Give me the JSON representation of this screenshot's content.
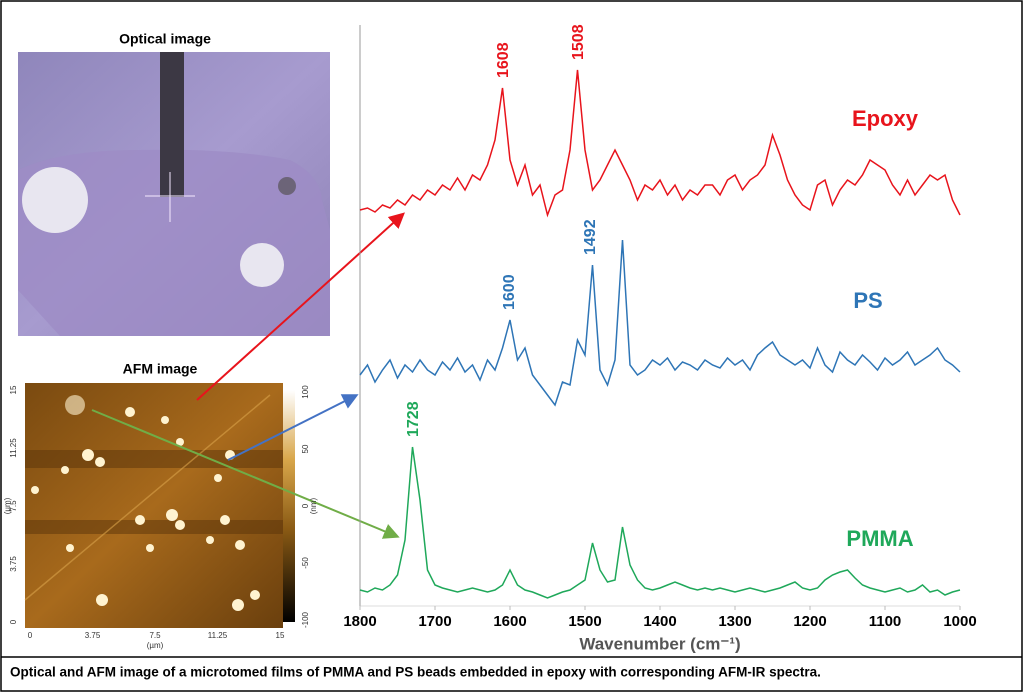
{
  "chart_data": {
    "type": "line",
    "xlabel": "Wavenumber (cm⁻¹)",
    "xlim": [
      1800,
      1000
    ],
    "xticks": [
      1800,
      1700,
      1600,
      1500,
      1400,
      1300,
      1200,
      1100,
      1000
    ],
    "ylim": [
      0,
      590
    ],
    "x": [
      1800,
      1790,
      1780,
      1770,
      1760,
      1750,
      1740,
      1730,
      1720,
      1710,
      1700,
      1690,
      1680,
      1670,
      1660,
      1650,
      1640,
      1630,
      1620,
      1610,
      1600,
      1590,
      1580,
      1570,
      1560,
      1550,
      1540,
      1530,
      1520,
      1510,
      1500,
      1490,
      1480,
      1470,
      1460,
      1450,
      1440,
      1430,
      1420,
      1410,
      1400,
      1390,
      1380,
      1370,
      1360,
      1350,
      1340,
      1330,
      1320,
      1310,
      1300,
      1290,
      1280,
      1270,
      1260,
      1250,
      1240,
      1230,
      1220,
      1210,
      1200,
      1190,
      1180,
      1170,
      1160,
      1150,
      1140,
      1130,
      1120,
      1110,
      1100,
      1090,
      1080,
      1070,
      1060,
      1050,
      1040,
      1030,
      1020,
      1010,
      1000
    ],
    "series": [
      {
        "name": "Epoxy",
        "color": "#e8141c",
        "peaks": [
          1608,
          1508
        ],
        "values": [
          400,
          402,
          398,
          405,
          402,
          410,
          405,
          415,
          410,
          420,
          415,
          425,
          420,
          432,
          420,
          435,
          430,
          445,
          470,
          522,
          450,
          425,
          445,
          415,
          425,
          395,
          415,
          420,
          460,
          540,
          460,
          420,
          430,
          445,
          460,
          445,
          430,
          410,
          425,
          420,
          430,
          415,
          425,
          410,
          420,
          415,
          425,
          425,
          415,
          430,
          435,
          420,
          430,
          435,
          445,
          475,
          455,
          430,
          415,
          405,
          400,
          425,
          430,
          405,
          420,
          430,
          425,
          435,
          450,
          445,
          440,
          425,
          415,
          430,
          415,
          425,
          435,
          430,
          435,
          410,
          395
        ]
      },
      {
        "name": "PS",
        "color": "#2e75b6",
        "peaks": [
          1600,
          1492
        ],
        "values": [
          235,
          245,
          228,
          240,
          250,
          232,
          245,
          238,
          250,
          240,
          235,
          248,
          240,
          252,
          238,
          245,
          230,
          250,
          240,
          262,
          290,
          250,
          262,
          235,
          225,
          215,
          205,
          228,
          225,
          270,
          255,
          345,
          240,
          225,
          250,
          370,
          245,
          235,
          240,
          250,
          245,
          252,
          240,
          248,
          245,
          240,
          250,
          245,
          242,
          252,
          245,
          250,
          240,
          255,
          262,
          268,
          255,
          250,
          245,
          250,
          242,
          262,
          245,
          238,
          258,
          250,
          245,
          255,
          248,
          240,
          252,
          245,
          250,
          258,
          245,
          250,
          255,
          262,
          250,
          245,
          238
        ]
      },
      {
        "name": "PMMA",
        "color": "#1fa85a",
        "peaks": [
          1728
        ],
        "values": [
          20,
          18,
          22,
          20,
          25,
          35,
          70,
          163,
          110,
          40,
          25,
          22,
          20,
          18,
          20,
          22,
          20,
          18,
          20,
          25,
          40,
          25,
          20,
          18,
          15,
          12,
          15,
          18,
          20,
          25,
          30,
          67,
          40,
          28,
          30,
          83,
          45,
          30,
          22,
          20,
          22,
          25,
          28,
          25,
          22,
          20,
          22,
          20,
          22,
          20,
          18,
          20,
          22,
          20,
          18,
          20,
          22,
          25,
          28,
          22,
          20,
          22,
          30,
          35,
          38,
          40,
          32,
          25,
          22,
          20,
          18,
          20,
          22,
          18,
          20,
          25,
          18,
          20,
          15,
          18,
          20
        ]
      }
    ]
  },
  "images": {
    "optical": {
      "title": "Optical image"
    },
    "afm": {
      "title": "AFM image",
      "x_ticks": [
        0,
        3.75,
        7.5,
        11.25,
        15
      ],
      "y_ticks": [
        0,
        3.75,
        7.5,
        11.25,
        15
      ],
      "colorbar_ticks": [
        100,
        50,
        0,
        -50,
        -100
      ],
      "x_unit": "(µm)",
      "y_unit": "(µm)",
      "colorbar_unit": "(nm)"
    }
  },
  "caption": "Optical and AFM image of a microtomed films of PMMA and PS beads embedded in epoxy with corresponding AFM-IR spectra."
}
